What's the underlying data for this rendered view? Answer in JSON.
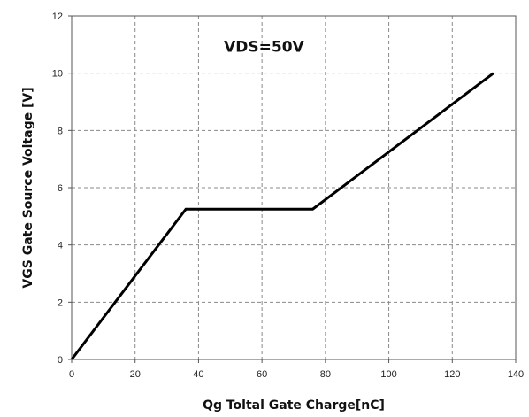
{
  "chart_data": {
    "type": "line",
    "title": "",
    "xlabel": "Qg Toltal Gate Charge[nC]",
    "ylabel": "VGS Gate Source Voltage [V]",
    "xlim": [
      0,
      140
    ],
    "ylim": [
      0,
      12
    ],
    "xticks": [
      0,
      20,
      40,
      60,
      80,
      100,
      120,
      140
    ],
    "yticks": [
      0,
      2,
      4,
      6,
      8,
      10,
      12
    ],
    "grid": true,
    "grid_style": "dashed",
    "annotation": "VDS=50V",
    "series": [
      {
        "x": [
          0,
          36,
          76,
          133
        ],
        "y": [
          0,
          5.25,
          5.25,
          10
        ],
        "color": "#000000"
      }
    ]
  }
}
